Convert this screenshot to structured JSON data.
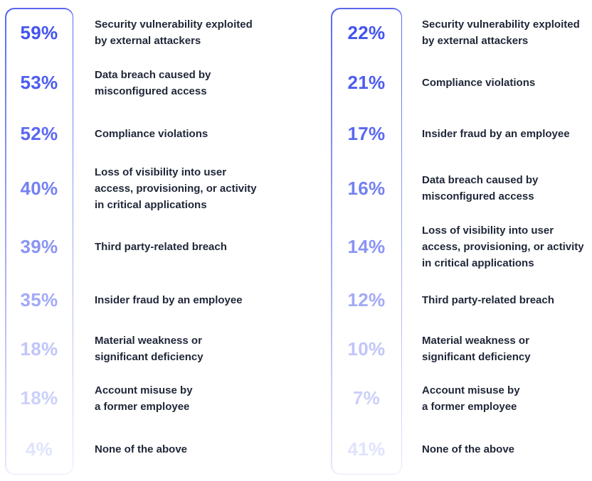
{
  "colors": {
    "background": "#ffffff",
    "label_text": "#1f2637",
    "frame_border_top": "#5b68f0",
    "frame_border_bottom": "#e6e9fc"
  },
  "chart_data": {
    "type": "table",
    "title": "",
    "legend": "none",
    "layout": "two ranked percentage lists, values fade from vivid blue (top) to pale lavender (bottom)",
    "value_colors": [
      "#4353ef",
      "#4d5cf0",
      "#5a68f1",
      "#7481f3",
      "#8a94f4",
      "#a3aaf6",
      "#c0c5f9",
      "#cbd0fa",
      "#e0e3fc"
    ],
    "left_column": [
      {
        "value": 59,
        "display": "59%",
        "label": "Security vulnerability exploited\nby external attackers"
      },
      {
        "value": 53,
        "display": "53%",
        "label": "Data breach caused by\nmisconfigured access"
      },
      {
        "value": 52,
        "display": "52%",
        "label": "Compliance violations"
      },
      {
        "value": 40,
        "display": "40%",
        "label": "Loss of visibility into user\naccess, provisioning, or activity\nin critical applications"
      },
      {
        "value": 39,
        "display": "39%",
        "label": "Third party-related breach"
      },
      {
        "value": 35,
        "display": "35%",
        "label": "Insider fraud by an employee"
      },
      {
        "value": 18,
        "display": "18%",
        "label": "Material weakness or\nsignificant deficiency"
      },
      {
        "value": 18,
        "display": "18%",
        "label": "Account misuse by\na former employee"
      },
      {
        "value": 4,
        "display": "4%",
        "label": "None of the above"
      }
    ],
    "right_column": [
      {
        "value": 22,
        "display": "22%",
        "label": "Security vulnerability exploited\nby external attackers"
      },
      {
        "value": 21,
        "display": "21%",
        "label": "Compliance violations"
      },
      {
        "value": 17,
        "display": "17%",
        "label": "Insider fraud by an employee"
      },
      {
        "value": 16,
        "display": "16%",
        "label": "Data breach caused by\nmisconfigured access"
      },
      {
        "value": 14,
        "display": "14%",
        "label": "Loss of visibility into user\naccess, provisioning, or activity\nin critical applications"
      },
      {
        "value": 12,
        "display": "12%",
        "label": "Third party-related breach"
      },
      {
        "value": 10,
        "display": "10%",
        "label": "Material weakness or\nsignificant deficiency"
      },
      {
        "value": 7,
        "display": "7%",
        "label": "Account misuse by\na former employee"
      },
      {
        "value": 41,
        "display": "41%",
        "label": "None of the above"
      }
    ]
  }
}
